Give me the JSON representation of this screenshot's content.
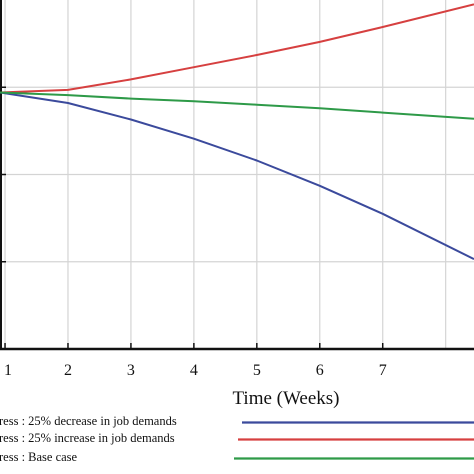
{
  "chart_data": {
    "type": "line",
    "xlabel": "Time (Weeks)",
    "ylabel": "",
    "x_ticks": [
      "1",
      "2",
      "3",
      "4",
      "5",
      "6",
      "7"
    ],
    "xlim": [
      0.92,
      8.45
    ],
    "ylim": [
      0,
      4
    ],
    "grid": true,
    "legend_position": "bottom",
    "colors": {
      "background": "#ffffff",
      "grid": "#d4d4d4",
      "axis": "#111111"
    },
    "series": [
      {
        "name": "ress : 25% decrease in job demands",
        "color": "#3b4a9c",
        "x": [
          0.92,
          2,
          3,
          4,
          5,
          6,
          7,
          8.45
        ],
        "y": [
          2.94,
          2.82,
          2.63,
          2.41,
          2.16,
          1.87,
          1.55,
          1.03
        ]
      },
      {
        "name": "ress : 25% increase in job demands",
        "color": "#d64040",
        "x": [
          0.92,
          2,
          3,
          4,
          5,
          6,
          7,
          8.45
        ],
        "y": [
          2.94,
          2.97,
          3.09,
          3.23,
          3.37,
          3.52,
          3.69,
          3.95
        ]
      },
      {
        "name": "ress : Base case",
        "color": "#2e9a48",
        "x": [
          0.92,
          2,
          3,
          4,
          5,
          6,
          7,
          8.45
        ],
        "y": [
          2.94,
          2.91,
          2.87,
          2.84,
          2.8,
          2.76,
          2.71,
          2.64
        ]
      }
    ]
  }
}
